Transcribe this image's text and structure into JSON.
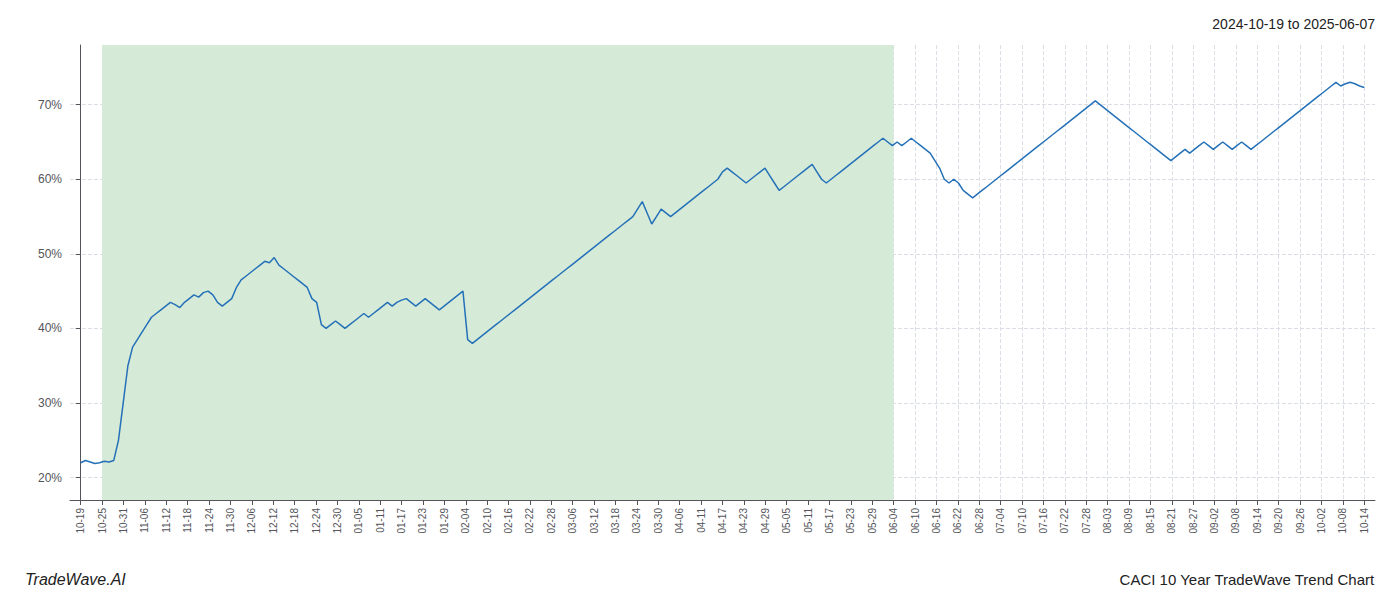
{
  "chart_data": {
    "type": "line",
    "title": "CACI 10 Year TradeWave Trend Chart",
    "subtitle": "2024-10-19 to 2025-06-07",
    "annotations": [
      "TradeWave.AI"
    ],
    "color": "#2471b8",
    "grid": true,
    "xlim": [
      -0.5,
      60.5
    ],
    "xticks": [
      {
        "value": 0,
        "label": "10-19"
      },
      {
        "value": 1,
        "label": "10-25"
      },
      {
        "value": 2,
        "label": "10-31"
      },
      {
        "value": 3,
        "label": "11-06"
      },
      {
        "value": 4,
        "label": "11-12"
      },
      {
        "value": 5,
        "label": "11-18"
      },
      {
        "value": 6,
        "label": "11-24"
      },
      {
        "value": 7,
        "label": "11-30"
      },
      {
        "value": 8,
        "label": "12-06"
      },
      {
        "value": 9,
        "label": "12-12"
      },
      {
        "value": 10,
        "label": "12-18"
      },
      {
        "value": 11,
        "label": "12-24"
      },
      {
        "value": 12,
        "label": "12-30"
      },
      {
        "value": 13,
        "label": "01-05"
      },
      {
        "value": 14,
        "label": "01-11"
      },
      {
        "value": 15,
        "label": "01-17"
      },
      {
        "value": 16,
        "label": "01-23"
      },
      {
        "value": 17,
        "label": "01-29"
      },
      {
        "value": 18,
        "label": "02-04"
      },
      {
        "value": 19,
        "label": "02-10"
      },
      {
        "value": 20,
        "label": "02-16"
      },
      {
        "value": 21,
        "label": "02-22"
      },
      {
        "value": 22,
        "label": "02-28"
      },
      {
        "value": 23,
        "label": "03-06"
      },
      {
        "value": 24,
        "label": "03-12"
      },
      {
        "value": 25,
        "label": "03-18"
      },
      {
        "value": 26,
        "label": "03-24"
      },
      {
        "value": 27,
        "label": "03-30"
      },
      {
        "value": 28,
        "label": "04-06"
      },
      {
        "value": 29,
        "label": "04-11"
      },
      {
        "value": 30,
        "label": "04-17"
      },
      {
        "value": 31,
        "label": "04-23"
      },
      {
        "value": 32,
        "label": "04-29"
      },
      {
        "value": 33,
        "label": "05-05"
      },
      {
        "value": 34,
        "label": "05-11"
      },
      {
        "value": 35,
        "label": "05-17"
      },
      {
        "value": 36,
        "label": "05-23"
      },
      {
        "value": 37,
        "label": "05-29"
      },
      {
        "value": 38,
        "label": "06-04"
      },
      {
        "value": 39,
        "label": "06-10"
      },
      {
        "value": 40,
        "label": "06-16"
      },
      {
        "value": 41,
        "label": "06-22"
      },
      {
        "value": 42,
        "label": "06-28"
      },
      {
        "value": 43,
        "label": "07-04"
      },
      {
        "value": 44,
        "label": "07-10"
      },
      {
        "value": 45,
        "label": "07-16"
      },
      {
        "value": 46,
        "label": "07-22"
      },
      {
        "value": 47,
        "label": "07-28"
      },
      {
        "value": 48,
        "label": "08-03"
      },
      {
        "value": 49,
        "label": "08-09"
      },
      {
        "value": 50,
        "label": "08-15"
      },
      {
        "value": 51,
        "label": "08-21"
      },
      {
        "value": 52,
        "label": "08-27"
      },
      {
        "value": 53,
        "label": "09-02"
      },
      {
        "value": 54,
        "label": "09-08"
      },
      {
        "value": 55,
        "label": "09-14"
      },
      {
        "value": 56,
        "label": "09-20"
      },
      {
        "value": 57,
        "label": "09-26"
      },
      {
        "value": 58,
        "label": "10-02"
      },
      {
        "value": 59,
        "label": "10-08"
      },
      {
        "value": 60,
        "label": "10-14"
      }
    ],
    "ylim": [
      17,
      78
    ],
    "yticks": [
      {
        "value": 20,
        "label": "20%"
      },
      {
        "value": 30,
        "label": "30%"
      },
      {
        "value": 40,
        "label": "40%"
      },
      {
        "value": 50,
        "label": "50%"
      },
      {
        "value": 60,
        "label": "60%"
      },
      {
        "value": 70,
        "label": "70%"
      }
    ],
    "shaded_span": {
      "from": "10-25",
      "to": "06-04",
      "color": "#d6ead8"
    },
    "values": [
      22.0,
      22.3,
      22.1,
      21.9,
      22.0,
      22.2,
      22.1,
      22.3,
      25.0,
      30.0,
      35.0,
      37.5,
      38.5,
      39.5,
      40.5,
      41.5,
      42.0,
      42.5,
      43.0,
      43.5,
      43.2,
      42.8,
      43.5,
      44.0,
      44.5,
      44.2,
      44.8,
      45.0,
      44.5,
      43.5,
      43.0,
      43.5,
      44.0,
      45.5,
      46.5,
      47.0,
      47.5,
      48.0,
      48.5,
      49.0,
      48.8,
      49.5,
      48.5,
      48.0,
      47.5,
      47.0,
      46.5,
      46.0,
      45.5,
      44.0,
      43.5,
      40.5,
      40.0,
      40.5,
      41.0,
      40.5,
      40.0,
      40.5,
      41.0,
      41.5,
      42.0,
      41.5,
      42.0,
      42.5,
      43.0,
      43.5,
      43.0,
      43.5,
      43.8,
      44.0,
      43.5,
      43.0,
      43.5,
      44.0,
      43.5,
      43.0,
      42.5,
      43.0,
      43.5,
      44.0,
      44.5,
      45.0,
      38.5,
      38.0,
      38.5,
      39.0,
      39.5,
      40.0,
      40.5,
      41.0,
      41.5,
      42.0,
      42.5,
      43.0,
      43.5,
      44.0,
      44.5,
      45.0,
      45.5,
      46.0,
      46.5,
      47.0,
      47.5,
      48.0,
      48.5,
      49.0,
      49.5,
      50.0,
      50.5,
      51.0,
      51.5,
      52.0,
      52.5,
      53.0,
      53.5,
      54.0,
      54.5,
      55.0,
      56.0,
      57.0,
      55.5,
      54.0,
      55.0,
      56.0,
      55.5,
      55.0,
      55.5,
      56.0,
      56.5,
      57.0,
      57.5,
      58.0,
      58.5,
      59.0,
      59.5,
      60.0,
      61.0,
      61.5,
      61.0,
      60.5,
      60.0,
      59.5,
      60.0,
      60.5,
      61.0,
      61.5,
      60.5,
      59.5,
      58.5,
      59.0,
      59.5,
      60.0,
      60.5,
      61.0,
      61.5,
      62.0,
      61.0,
      60.0,
      59.5,
      60.0,
      60.5,
      61.0,
      61.5,
      62.0,
      62.5,
      63.0,
      63.5,
      64.0,
      64.5,
      65.0,
      65.5,
      65.0,
      64.5,
      65.0,
      64.5,
      65.0,
      65.5,
      65.0,
      64.5,
      64.0,
      63.5,
      62.5,
      61.5,
      60.0,
      59.5,
      60.0,
      59.5,
      58.5,
      58.0,
      57.5,
      58.0,
      58.5,
      59.0,
      59.5,
      60.0,
      60.5,
      61.0,
      61.5,
      62.0,
      62.5,
      63.0,
      63.5,
      64.0,
      64.5,
      65.0,
      65.5,
      66.0,
      66.5,
      67.0,
      67.5,
      68.0,
      68.5,
      69.0,
      69.5,
      70.0,
      70.5,
      70.0,
      69.5,
      69.0,
      68.5,
      68.0,
      67.5,
      67.0,
      66.5,
      66.0,
      65.5,
      65.0,
      64.5,
      64.0,
      63.5,
      63.0,
      62.5,
      63.0,
      63.5,
      64.0,
      63.5,
      64.0,
      64.5,
      65.0,
      64.5,
      64.0,
      64.5,
      65.0,
      64.5,
      64.0,
      64.5,
      65.0,
      64.5,
      64.0,
      64.5,
      65.0,
      65.5,
      66.0,
      66.5,
      67.0,
      67.5,
      68.0,
      68.5,
      69.0,
      69.5,
      70.0,
      70.5,
      71.0,
      71.5,
      72.0,
      72.5,
      73.0,
      72.5,
      72.8,
      73.0,
      72.8,
      72.5,
      72.3
    ]
  }
}
